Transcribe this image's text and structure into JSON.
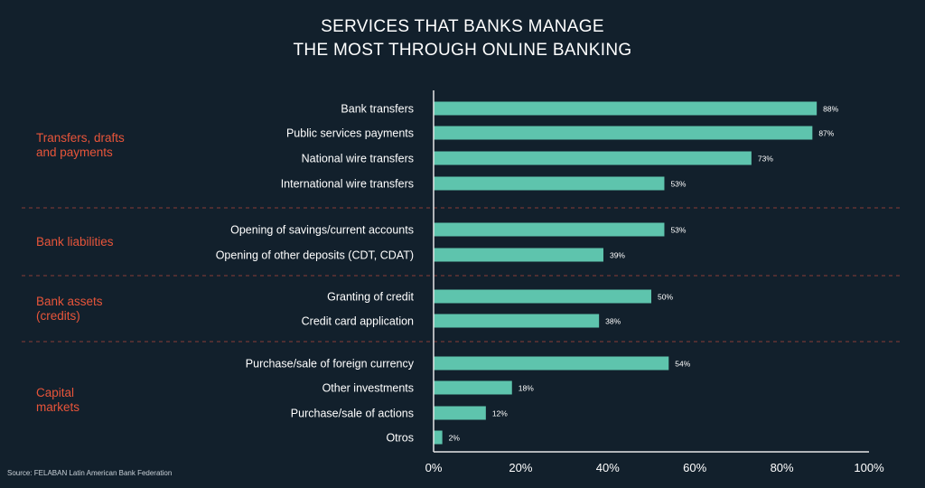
{
  "chart_data": {
    "type": "bar",
    "orientation": "horizontal",
    "title": "SERVICES THAT BANKS MANAGE THE MOST THROUGH ONLINE BANKING",
    "title_lines": [
      "SERVICES THAT BANKS MANAGE",
      "THE MOST THROUGH ONLINE BANKING"
    ],
    "groups": [
      {
        "name_lines": [
          "Transfers, drafts",
          "and payments"
        ],
        "items": [
          {
            "category": "Bank transfers",
            "value": 88,
            "label": "88%"
          },
          {
            "category": "Public services payments",
            "value": 87,
            "label": "87%"
          },
          {
            "category": "National wire transfers",
            "value": 73,
            "label": "73%"
          },
          {
            "category": "International wire transfers",
            "value": 53,
            "label": "53%"
          }
        ]
      },
      {
        "name_lines": [
          "Bank liabilities"
        ],
        "items": [
          {
            "category": "Opening of savings/current accounts",
            "value": 53,
            "label": "53%"
          },
          {
            "category": "Opening of other deposits (CDT, CDAT)",
            "value": 39,
            "label": "39%"
          }
        ]
      },
      {
        "name_lines": [
          "Bank assets",
          "(credits)"
        ],
        "items": [
          {
            "category": "Granting of credit",
            "value": 50,
            "label": "50%"
          },
          {
            "category": "Credit card application",
            "value": 38,
            "label": "38%"
          }
        ]
      },
      {
        "name_lines": [
          "Capital",
          "markets"
        ],
        "items": [
          {
            "category": "Purchase/sale of foreign currency",
            "value": 54,
            "label": "54%"
          },
          {
            "category": "Other investments",
            "value": 18,
            "label": "18%"
          },
          {
            "category": "Purchase/sale of actions",
            "value": 12,
            "label": "12%"
          },
          {
            "category": "Otros",
            "value": 2,
            "label": "2%"
          }
        ]
      }
    ],
    "xlim": [
      0,
      100
    ],
    "x_ticks": [
      0,
      20,
      40,
      60,
      80,
      100
    ],
    "x_tick_labels": [
      "0%",
      "20%",
      "40%",
      "60%",
      "80%",
      "100%"
    ],
    "grid": false,
    "legend": "none"
  },
  "colors": {
    "background": "#12202c",
    "bar": "#5ec4ad",
    "group_label": "#e8553a",
    "divider": "#8a3b36",
    "axis": "#e6e6e6",
    "text": "#ffffff"
  },
  "source": "Source: FELABAN Latin American Bank Federation"
}
